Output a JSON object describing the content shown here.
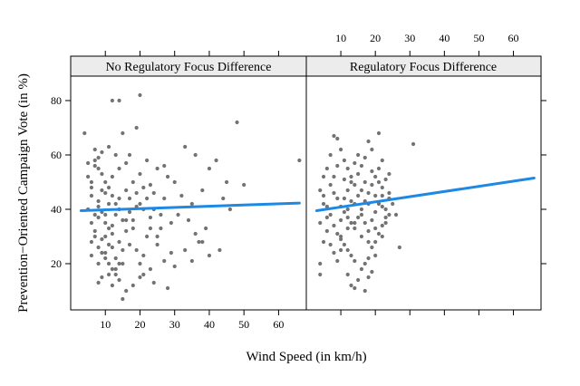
{
  "chart_data": {
    "type": "scatter",
    "xlabel": "Wind Speed (in km/h)",
    "ylabel": "Prevention−Oriented Campaign Vote (in %)",
    "xlim": [
      0,
      68
    ],
    "ylim": [
      3,
      89
    ],
    "x_ticks": [
      "10",
      "20",
      "30",
      "40",
      "50",
      "60"
    ],
    "y_ticks": [
      "20",
      "40",
      "60",
      "80"
    ],
    "point_color": "#737373",
    "line_color": "#1e88e5",
    "panels": [
      {
        "title": "No Regulatory Focus Difference",
        "fit_line": {
          "x": [
            3,
            66
          ],
          "y": [
            39.5,
            42.3
          ]
        },
        "points": [
          [
            4,
            68
          ],
          [
            5,
            57
          ],
          [
            6,
            50
          ],
          [
            7,
            56
          ],
          [
            6,
            45
          ],
          [
            5,
            40
          ],
          [
            7,
            62
          ],
          [
            8,
            59
          ],
          [
            9,
            53
          ],
          [
            10,
            50
          ],
          [
            11,
            48
          ],
          [
            12,
            45
          ],
          [
            13,
            42
          ],
          [
            14,
            40
          ],
          [
            9,
            39
          ],
          [
            8,
            37
          ],
          [
            10,
            35
          ],
          [
            11,
            33
          ],
          [
            12,
            31
          ],
          [
            7,
            30
          ],
          [
            6,
            28
          ],
          [
            8,
            26
          ],
          [
            9,
            24
          ],
          [
            10,
            22
          ],
          [
            11,
            20
          ],
          [
            12,
            18
          ],
          [
            13,
            16
          ],
          [
            14,
            14
          ],
          [
            8,
            13
          ],
          [
            12,
            12
          ],
          [
            15,
            7
          ],
          [
            16,
            10
          ],
          [
            18,
            12
          ],
          [
            20,
            20
          ],
          [
            12,
            80
          ],
          [
            14,
            80
          ],
          [
            20,
            82
          ],
          [
            17,
            60
          ],
          [
            15,
            68
          ],
          [
            19,
            70
          ],
          [
            22,
            58
          ],
          [
            25,
            55
          ],
          [
            28,
            52
          ],
          [
            21,
            48
          ],
          [
            24,
            46
          ],
          [
            27,
            44
          ],
          [
            30,
            50
          ],
          [
            32,
            45
          ],
          [
            35,
            42
          ],
          [
            38,
            47
          ],
          [
            40,
            55
          ],
          [
            42,
            58
          ],
          [
            45,
            50
          ],
          [
            33,
            63
          ],
          [
            36,
            60
          ],
          [
            48,
            72
          ],
          [
            40,
            23
          ],
          [
            43,
            25
          ],
          [
            30,
            19
          ],
          [
            25,
            27
          ],
          [
            22,
            30
          ],
          [
            18,
            33
          ],
          [
            16,
            36
          ],
          [
            17,
            39
          ],
          [
            19,
            41
          ],
          [
            23,
            37
          ],
          [
            26,
            33
          ],
          [
            29,
            35
          ],
          [
            31,
            38
          ],
          [
            34,
            36
          ],
          [
            36,
            31
          ],
          [
            38,
            28
          ],
          [
            20,
            15
          ],
          [
            24,
            13
          ],
          [
            28,
            11
          ],
          [
            13,
            22
          ],
          [
            15,
            25
          ],
          [
            11,
            27
          ],
          [
            9,
            29
          ],
          [
            7,
            32
          ],
          [
            6,
            35
          ],
          [
            8,
            43
          ],
          [
            10,
            46
          ],
          [
            12,
            52
          ],
          [
            14,
            55
          ],
          [
            16,
            57
          ],
          [
            13,
            60
          ],
          [
            11,
            63
          ],
          [
            9,
            61
          ],
          [
            7,
            58
          ],
          [
            5,
            52
          ],
          [
            6,
            48
          ],
          [
            8,
            41
          ],
          [
            10,
            38
          ],
          [
            14,
            44
          ],
          [
            16,
            47
          ],
          [
            18,
            50
          ],
          [
            20,
            53
          ],
          [
            22,
            44
          ],
          [
            24,
            40
          ],
          [
            26,
            38
          ],
          [
            17,
            27
          ],
          [
            19,
            25
          ],
          [
            21,
            23
          ],
          [
            15,
            20
          ],
          [
            13,
            18
          ],
          [
            11,
            16
          ],
          [
            9,
            15
          ],
          [
            10,
            30
          ],
          [
            12,
            34
          ],
          [
            14,
            28
          ],
          [
            16,
            32
          ],
          [
            18,
            36
          ],
          [
            20,
            42
          ],
          [
            23,
            49
          ],
          [
            27,
            56
          ],
          [
            66,
            58
          ],
          [
            50,
            49
          ],
          [
            44,
            44
          ],
          [
            46,
            40
          ],
          [
            39,
            33
          ],
          [
            33,
            25
          ],
          [
            35,
            21
          ],
          [
            37,
            28
          ],
          [
            29,
            24
          ],
          [
            27,
            21
          ],
          [
            23,
            18
          ],
          [
            21,
            16
          ],
          [
            8,
            55
          ],
          [
            9,
            47
          ],
          [
            11,
            42
          ],
          [
            13,
            38
          ],
          [
            15,
            36
          ],
          [
            17,
            44
          ],
          [
            19,
            46
          ],
          [
            21,
            40
          ],
          [
            23,
            33
          ],
          [
            25,
            30
          ],
          [
            10,
            24
          ],
          [
            12,
            26
          ],
          [
            14,
            20
          ],
          [
            8,
            20
          ],
          [
            6,
            23
          ],
          [
            7,
            38
          ]
        ]
      },
      {
        "title": "Regulatory Focus Difference",
        "fit_line": {
          "x": [
            3,
            66
          ],
          "y": [
            39.5,
            51.5
          ]
        },
        "points": [
          [
            4,
            47
          ],
          [
            5,
            52
          ],
          [
            4,
            35
          ],
          [
            5,
            28
          ],
          [
            4,
            20
          ],
          [
            4,
            16
          ],
          [
            5,
            42
          ],
          [
            6,
            55
          ],
          [
            7,
            60
          ],
          [
            8,
            67
          ],
          [
            9,
            66
          ],
          [
            10,
            62
          ],
          [
            11,
            58
          ],
          [
            12,
            55
          ],
          [
            13,
            52
          ],
          [
            14,
            49
          ],
          [
            8,
            46
          ],
          [
            9,
            44
          ],
          [
            10,
            41
          ],
          [
            11,
            39
          ],
          [
            12,
            37
          ],
          [
            13,
            35
          ],
          [
            14,
            33
          ],
          [
            9,
            31
          ],
          [
            10,
            29
          ],
          [
            11,
            27
          ],
          [
            12,
            25
          ],
          [
            13,
            23
          ],
          [
            14,
            21
          ],
          [
            12,
            16
          ],
          [
            13,
            12
          ],
          [
            14,
            11
          ],
          [
            15,
            14
          ],
          [
            16,
            18
          ],
          [
            17,
            20
          ],
          [
            18,
            22
          ],
          [
            19,
            26
          ],
          [
            20,
            28
          ],
          [
            21,
            31
          ],
          [
            22,
            34
          ],
          [
            15,
            37
          ],
          [
            16,
            40
          ],
          [
            17,
            43
          ],
          [
            18,
            46
          ],
          [
            19,
            49
          ],
          [
            20,
            52
          ],
          [
            21,
            55
          ],
          [
            22,
            58
          ],
          [
            21,
            68
          ],
          [
            19,
            62
          ],
          [
            18,
            65
          ],
          [
            17,
            59
          ],
          [
            16,
            56
          ],
          [
            15,
            53
          ],
          [
            24,
            44
          ],
          [
            25,
            42
          ],
          [
            26,
            38
          ],
          [
            27,
            26
          ],
          [
            31,
            64
          ],
          [
            23,
            37
          ],
          [
            22,
            30
          ],
          [
            20,
            23
          ],
          [
            18,
            15
          ],
          [
            17,
            10
          ],
          [
            19,
            17
          ],
          [
            23,
            40
          ],
          [
            24,
            46
          ],
          [
            22,
            48
          ],
          [
            20,
            45
          ],
          [
            18,
            42
          ],
          [
            16,
            38
          ],
          [
            14,
            35
          ],
          [
            12,
            33
          ],
          [
            10,
            30
          ],
          [
            8,
            34
          ],
          [
            7,
            38
          ],
          [
            6,
            41
          ],
          [
            5,
            45
          ],
          [
            6,
            32
          ],
          [
            7,
            27
          ],
          [
            8,
            24
          ],
          [
            9,
            21
          ],
          [
            10,
            25
          ],
          [
            11,
            44
          ],
          [
            12,
            47
          ],
          [
            13,
            50
          ],
          [
            14,
            57
          ],
          [
            15,
            60
          ],
          [
            16,
            47
          ],
          [
            17,
            35
          ],
          [
            18,
            32
          ],
          [
            19,
            36
          ],
          [
            20,
            39
          ],
          [
            21,
            42
          ],
          [
            22,
            45
          ],
          [
            23,
            51
          ],
          [
            24,
            53
          ],
          [
            11,
            51
          ],
          [
            13,
            43
          ],
          [
            15,
            45
          ],
          [
            17,
            50
          ],
          [
            19,
            54
          ],
          [
            21,
            50
          ],
          [
            23,
            35
          ],
          [
            9,
            56
          ],
          [
            8,
            52
          ],
          [
            7,
            49
          ],
          [
            6,
            37
          ],
          [
            10,
            36
          ],
          [
            12,
            40
          ],
          [
            14,
            42
          ],
          [
            16,
            30
          ],
          [
            18,
            28
          ],
          [
            20,
            33
          ],
          [
            22,
            41
          ],
          [
            24,
            38
          ]
        ]
      }
    ]
  }
}
